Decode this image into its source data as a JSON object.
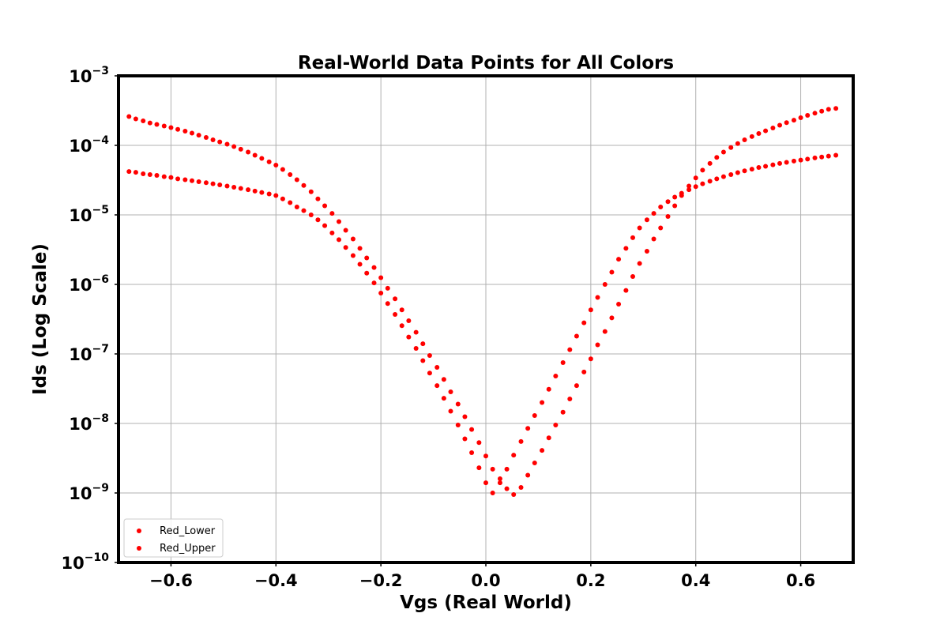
{
  "chart_data": {
    "type": "scatter",
    "title": "Real-World Data Points for All Colors",
    "xlabel": "Vgs (Real World)",
    "ylabel": "Ids (Log Scale)",
    "xlim": [
      -0.7,
      0.7
    ],
    "ylim": [
      1e-10,
      0.001
    ],
    "yscale": "log",
    "grid": true,
    "legend_position": "lower-left",
    "x_ticks": [
      {
        "value": -0.6,
        "label": "−0.6"
      },
      {
        "value": -0.4,
        "label": "−0.4"
      },
      {
        "value": -0.2,
        "label": "−0.2"
      },
      {
        "value": 0.0,
        "label": "0.0"
      },
      {
        "value": 0.2,
        "label": "0.2"
      },
      {
        "value": 0.4,
        "label": "0.4"
      },
      {
        "value": 0.6,
        "label": "0.6"
      }
    ],
    "y_ticks": [
      {
        "value": 0.001,
        "base": "10",
        "exp": "−3"
      },
      {
        "value": 0.0001,
        "base": "10",
        "exp": "−4"
      },
      {
        "value": 1e-05,
        "base": "10",
        "exp": "−5"
      },
      {
        "value": 1e-06,
        "base": "10",
        "exp": "−6"
      },
      {
        "value": 1e-07,
        "base": "10",
        "exp": "−7"
      },
      {
        "value": 1e-08,
        "base": "10",
        "exp": "−8"
      },
      {
        "value": 1e-09,
        "base": "10",
        "exp": "−9"
      },
      {
        "value": 1e-10,
        "base": "10",
        "exp": "−10"
      }
    ],
    "series": [
      {
        "name": "Red_Lower",
        "color": "#ff0000",
        "points": [
          [
            -0.68,
            4.2e-05
          ],
          [
            -0.667,
            4.1e-05
          ],
          [
            -0.653,
            3.9e-05
          ],
          [
            -0.64,
            3.8e-05
          ],
          [
            -0.627,
            3.7e-05
          ],
          [
            -0.613,
            3.55e-05
          ],
          [
            -0.6,
            3.45e-05
          ],
          [
            -0.587,
            3.3e-05
          ],
          [
            -0.573,
            3.2e-05
          ],
          [
            -0.56,
            3.1e-05
          ],
          [
            -0.547,
            3e-05
          ],
          [
            -0.533,
            2.9e-05
          ],
          [
            -0.52,
            2.8e-05
          ],
          [
            -0.507,
            2.7e-05
          ],
          [
            -0.493,
            2.6e-05
          ],
          [
            -0.48,
            2.5e-05
          ],
          [
            -0.467,
            2.4e-05
          ],
          [
            -0.453,
            2.3e-05
          ],
          [
            -0.44,
            2.2e-05
          ],
          [
            -0.427,
            2.1e-05
          ],
          [
            -0.413,
            2e-05
          ],
          [
            -0.4,
            1.9e-05
          ],
          [
            -0.387,
            1.7e-05
          ],
          [
            -0.373,
            1.5e-05
          ],
          [
            -0.36,
            1.3e-05
          ],
          [
            -0.347,
            1.15e-05
          ],
          [
            -0.333,
            1e-05
          ],
          [
            -0.32,
            8.5e-06
          ],
          [
            -0.307,
            7e-06
          ],
          [
            -0.293,
            5.5e-06
          ],
          [
            -0.28,
            4.4e-06
          ],
          [
            -0.267,
            3.4e-06
          ],
          [
            -0.253,
            2.6e-06
          ],
          [
            -0.24,
            1.95e-06
          ],
          [
            -0.227,
            1.45e-06
          ],
          [
            -0.213,
            1.05e-06
          ],
          [
            -0.2,
            7.5e-07
          ],
          [
            -0.187,
            5.3e-07
          ],
          [
            -0.173,
            3.7e-07
          ],
          [
            -0.16,
            2.55e-07
          ],
          [
            -0.147,
            1.75e-07
          ],
          [
            -0.133,
            1.2e-07
          ],
          [
            -0.12,
            8e-08
          ],
          [
            -0.107,
            5.3e-08
          ],
          [
            -0.093,
            3.5e-08
          ],
          [
            -0.08,
            2.3e-08
          ],
          [
            -0.067,
            1.5e-08
          ],
          [
            -0.053,
            9.5e-09
          ],
          [
            -0.04,
            6e-09
          ],
          [
            -0.027,
            3.8e-09
          ],
          [
            -0.013,
            2.3e-09
          ],
          [
            0.0,
            1.4e-09
          ],
          [
            0.013,
            1e-09
          ],
          [
            0.027,
            1.4e-09
          ],
          [
            0.04,
            2.2e-09
          ],
          [
            0.053,
            3.5e-09
          ],
          [
            0.067,
            5.5e-09
          ],
          [
            0.08,
            8.5e-09
          ],
          [
            0.093,
            1.3e-08
          ],
          [
            0.107,
            2e-08
          ],
          [
            0.12,
            3.1e-08
          ],
          [
            0.133,
            4.8e-08
          ],
          [
            0.147,
            7.5e-08
          ],
          [
            0.16,
            1.15e-07
          ],
          [
            0.173,
            1.8e-07
          ],
          [
            0.187,
            2.8e-07
          ],
          [
            0.2,
            4.3e-07
          ],
          [
            0.213,
            6.5e-07
          ],
          [
            0.227,
            1e-06
          ],
          [
            0.24,
            1.5e-06
          ],
          [
            0.253,
            2.3e-06
          ],
          [
            0.267,
            3.3e-06
          ],
          [
            0.28,
            4.7e-06
          ],
          [
            0.293,
            6.5e-06
          ],
          [
            0.307,
            8.5e-06
          ],
          [
            0.32,
            1.05e-05
          ],
          [
            0.333,
            1.3e-05
          ],
          [
            0.347,
            1.55e-05
          ],
          [
            0.36,
            1.8e-05
          ],
          [
            0.373,
            2.05e-05
          ],
          [
            0.387,
            2.3e-05
          ],
          [
            0.4,
            2.55e-05
          ],
          [
            0.413,
            2.8e-05
          ],
          [
            0.427,
            3.05e-05
          ],
          [
            0.44,
            3.3e-05
          ],
          [
            0.453,
            3.55e-05
          ],
          [
            0.467,
            3.8e-05
          ],
          [
            0.48,
            4.05e-05
          ],
          [
            0.493,
            4.3e-05
          ],
          [
            0.507,
            4.55e-05
          ],
          [
            0.52,
            4.8e-05
          ],
          [
            0.533,
            5e-05
          ],
          [
            0.547,
            5.25e-05
          ],
          [
            0.56,
            5.5e-05
          ],
          [
            0.573,
            5.7e-05
          ],
          [
            0.587,
            5.95e-05
          ],
          [
            0.6,
            6.15e-05
          ],
          [
            0.613,
            6.35e-05
          ],
          [
            0.627,
            6.6e-05
          ],
          [
            0.64,
            6.8e-05
          ],
          [
            0.653,
            7e-05
          ],
          [
            0.667,
            7.2e-05
          ]
        ]
      },
      {
        "name": "Red_Upper",
        "color": "#ff0000",
        "points": [
          [
            -0.68,
            0.00026
          ],
          [
            -0.667,
            0.00024
          ],
          [
            -0.653,
            0.000225
          ],
          [
            -0.64,
            0.00021
          ],
          [
            -0.627,
            0.0002
          ],
          [
            -0.613,
            0.00019
          ],
          [
            -0.6,
            0.00018
          ],
          [
            -0.587,
            0.00017
          ],
          [
            -0.573,
            0.00016
          ],
          [
            -0.56,
            0.00015
          ],
          [
            -0.547,
            0.00014
          ],
          [
            -0.533,
            0.00013
          ],
          [
            -0.52,
            0.00012
          ],
          [
            -0.507,
            0.000112
          ],
          [
            -0.493,
            0.000104
          ],
          [
            -0.48,
            9.6e-05
          ],
          [
            -0.467,
            8.8e-05
          ],
          [
            -0.453,
            8e-05
          ],
          [
            -0.44,
            7.2e-05
          ],
          [
            -0.427,
            6.5e-05
          ],
          [
            -0.413,
            5.8e-05
          ],
          [
            -0.4,
            5.2e-05
          ],
          [
            -0.387,
            4.5e-05
          ],
          [
            -0.373,
            3.8e-05
          ],
          [
            -0.36,
            3.2e-05
          ],
          [
            -0.347,
            2.65e-05
          ],
          [
            -0.333,
            2.15e-05
          ],
          [
            -0.32,
            1.7e-05
          ],
          [
            -0.307,
            1.35e-05
          ],
          [
            -0.293,
            1.05e-05
          ],
          [
            -0.28,
            8e-06
          ],
          [
            -0.267,
            6e-06
          ],
          [
            -0.253,
            4.5e-06
          ],
          [
            -0.24,
            3.3e-06
          ],
          [
            -0.227,
            2.4e-06
          ],
          [
            -0.213,
            1.75e-06
          ],
          [
            -0.2,
            1.25e-06
          ],
          [
            -0.187,
            8.8e-07
          ],
          [
            -0.173,
            6.2e-07
          ],
          [
            -0.16,
            4.3e-07
          ],
          [
            -0.147,
            3e-07
          ],
          [
            -0.133,
            2.05e-07
          ],
          [
            -0.12,
            1.4e-07
          ],
          [
            -0.107,
            9.5e-08
          ],
          [
            -0.093,
            6.4e-08
          ],
          [
            -0.08,
            4.3e-08
          ],
          [
            -0.067,
            2.85e-08
          ],
          [
            -0.053,
            1.9e-08
          ],
          [
            -0.04,
            1.25e-08
          ],
          [
            -0.027,
            8.2e-09
          ],
          [
            -0.013,
            5.3e-09
          ],
          [
            0.0,
            3.4e-09
          ],
          [
            0.013,
            2.2e-09
          ],
          [
            0.027,
            1.6e-09
          ],
          [
            0.04,
            1.15e-09
          ],
          [
            0.053,
            9.5e-10
          ],
          [
            0.067,
            1.2e-09
          ],
          [
            0.08,
            1.8e-09
          ],
          [
            0.093,
            2.7e-09
          ],
          [
            0.107,
            4.1e-09
          ],
          [
            0.12,
            6.2e-09
          ],
          [
            0.133,
            9.5e-09
          ],
          [
            0.147,
            1.45e-08
          ],
          [
            0.16,
            2.25e-08
          ],
          [
            0.173,
            3.5e-08
          ],
          [
            0.187,
            5.5e-08
          ],
          [
            0.2,
            8.5e-08
          ],
          [
            0.213,
            1.35e-07
          ],
          [
            0.227,
            2.1e-07
          ],
          [
            0.24,
            3.3e-07
          ],
          [
            0.253,
            5.2e-07
          ],
          [
            0.267,
            8.2e-07
          ],
          [
            0.28,
            1.3e-06
          ],
          [
            0.293,
            2e-06
          ],
          [
            0.307,
            3e-06
          ],
          [
            0.32,
            4.5e-06
          ],
          [
            0.333,
            6.5e-06
          ],
          [
            0.347,
            9.5e-06
          ],
          [
            0.36,
            1.35e-05
          ],
          [
            0.373,
            1.9e-05
          ],
          [
            0.387,
            2.6e-05
          ],
          [
            0.4,
            3.4e-05
          ],
          [
            0.413,
            4.4e-05
          ],
          [
            0.427,
            5.5e-05
          ],
          [
            0.44,
            6.7e-05
          ],
          [
            0.453,
            8e-05
          ],
          [
            0.467,
            9.3e-05
          ],
          [
            0.48,
            0.000106
          ],
          [
            0.493,
            0.00012
          ],
          [
            0.507,
            0.000134
          ],
          [
            0.52,
            0.000148
          ],
          [
            0.533,
            0.000162
          ],
          [
            0.547,
            0.000178
          ],
          [
            0.56,
            0.000195
          ],
          [
            0.573,
            0.000212
          ],
          [
            0.587,
            0.00023
          ],
          [
            0.6,
            0.00025
          ],
          [
            0.613,
            0.00027
          ],
          [
            0.627,
            0.00029
          ],
          [
            0.64,
            0.00031
          ],
          [
            0.653,
            0.00033
          ],
          [
            0.667,
            0.00034
          ]
        ]
      }
    ]
  }
}
